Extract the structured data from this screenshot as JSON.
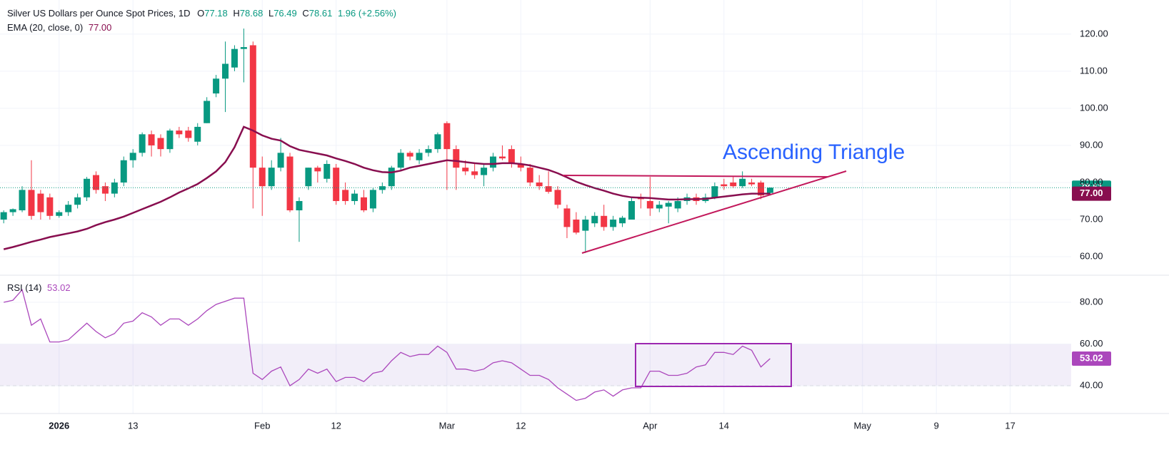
{
  "chart_data": {
    "type": "candlestick",
    "title": "Silver US Dollars per Ounce Spot Prices, 1D",
    "ohlc_labels": [
      "O",
      "H",
      "L",
      "C"
    ],
    "change": {
      "value": 1.96,
      "label": "1.96 (+2.56%)"
    },
    "up_color": "#089981",
    "down_color": "#f23645",
    "open": [
      70,
      72,
      72.5,
      78,
      77,
      76,
      71,
      72,
      74,
      76,
      82,
      79,
      77,
      80,
      86,
      88,
      93,
      92,
      89,
      94,
      94,
      91,
      96,
      104,
      108,
      111,
      116,
      117,
      84,
      79,
      84,
      87,
      72.5,
      79,
      84,
      81,
      84,
      78,
      75,
      76,
      73,
      78,
      79,
      84,
      88,
      86,
      88,
      89,
      96,
      89,
      84,
      83,
      82,
      84,
      87,
      89,
      85,
      84,
      80,
      79,
      78,
      73,
      70,
      67,
      69,
      71,
      68,
      69,
      70,
      76,
      75,
      73,
      73.5,
      73,
      75,
      76,
      75,
      76,
      79.5,
      80,
      79,
      80,
      80,
      77.18
    ],
    "high": [
      72.5,
      73,
      79,
      86,
      78,
      77,
      72.5,
      75,
      77,
      81.5,
      83,
      80,
      81,
      87,
      89,
      93.5,
      94,
      93,
      94.5,
      95,
      95,
      96,
      103,
      109,
      118,
      117,
      121.5,
      118,
      87,
      86,
      92,
      88,
      76,
      84,
      84.5,
      86,
      85,
      80,
      78,
      78,
      78.5,
      80,
      84.5,
      89,
      88.5,
      89,
      90,
      93.5,
      96.5,
      90,
      86,
      85,
      85,
      88,
      90,
      90,
      87,
      85,
      82,
      83,
      79,
      74,
      72,
      71,
      72,
      74,
      71,
      71,
      76,
      77,
      81.5,
      75,
      75,
      76,
      77,
      77,
      77,
      80,
      81,
      81.5,
      83,
      81,
      80.5,
      78.68
    ],
    "low": [
      69,
      71,
      72,
      70,
      70,
      70,
      70.5,
      71,
      73,
      75,
      77,
      75,
      76,
      79,
      84,
      87,
      87,
      87,
      88,
      92,
      91,
      90,
      96,
      103,
      99,
      110,
      107,
      73,
      71,
      78,
      83,
      72,
      64,
      78,
      80,
      80,
      74,
      74,
      74,
      72,
      72,
      77,
      78,
      83,
      86,
      85,
      87,
      88,
      78,
      78,
      82,
      81,
      79,
      83,
      86,
      84,
      83,
      79,
      78,
      77,
      73,
      65,
      66,
      61,
      68,
      67,
      67,
      68,
      70,
      73,
      71,
      72,
      69,
      72,
      74,
      74,
      74.5,
      75.5,
      78,
      78.5,
      78.5,
      79,
      75.5,
      76.49
    ],
    "close": [
      72,
      72.8,
      78,
      71,
      72,
      71,
      72,
      74,
      76,
      81,
      78,
      77,
      80,
      86,
      88,
      93,
      90,
      89,
      94,
      93,
      92,
      95,
      102,
      108,
      112,
      116,
      116.5,
      84,
      79,
      84,
      88,
      72.5,
      75,
      84,
      83,
      85,
      75,
      75,
      77,
      72.5,
      78,
      79,
      84,
      88,
      87,
      88,
      89,
      93,
      89,
      84,
      83,
      82,
      84,
      87,
      86.5,
      85,
      84,
      80,
      79,
      77.5,
      74,
      68,
      66.5,
      70,
      71,
      68,
      70,
      70.5,
      75,
      75.5,
      73,
      74,
      74.5,
      75,
      76,
      75,
      76,
      79,
      79,
      79,
      81,
      79.5,
      76.5,
      78.61
    ],
    "ema": {
      "name": "EMA (20, close, 0)",
      "color": "#880e4f",
      "last_label": "77.00",
      "values": [
        62,
        62.6,
        63.3,
        64,
        64.6,
        65.3,
        65.8,
        66.3,
        66.8,
        67.5,
        68.5,
        69.3,
        70,
        70.8,
        71.8,
        72.8,
        73.8,
        74.8,
        76,
        77.3,
        78.4,
        79.6,
        81.2,
        83,
        85.5,
        89.5,
        95,
        94,
        92.7,
        91.8,
        91.3,
        89.8,
        88.8,
        88.3,
        87.8,
        87.3,
        86.5,
        85.8,
        85,
        84,
        83.3,
        82.8,
        82.7,
        83.2,
        84,
        84.5,
        85,
        85.5,
        86,
        85.8,
        85.5,
        85.2,
        85,
        85,
        85.2,
        85.2,
        85,
        84.6,
        84,
        83.4,
        82.5,
        81.4,
        80.2,
        79.3,
        78.5,
        77.8,
        77,
        76.4,
        76,
        75.9,
        75.8,
        75.6,
        75.4,
        75.4,
        75.5,
        75.5,
        75.6,
        75.9,
        76.2,
        76.5,
        76.8,
        77,
        77,
        77
      ]
    },
    "ylim": [
      55.2,
      129.2
    ],
    "yticks": [
      {
        "value": 60,
        "label": "60.00"
      },
      {
        "value": 70,
        "label": "70.00"
      },
      {
        "value": 80,
        "label": "80.00"
      },
      {
        "value": 90,
        "label": "90.00"
      },
      {
        "value": 100,
        "label": "100.00"
      },
      {
        "value": 110,
        "label": "110.00"
      },
      {
        "value": 120,
        "label": "120.00"
      }
    ],
    "xlim": [
      -0.4,
      115.6
    ],
    "xticks": [
      {
        "value": 6,
        "label": "2026"
      },
      {
        "value": 14,
        "label": "13"
      },
      {
        "value": 28,
        "label": "Feb"
      },
      {
        "value": 36,
        "label": "12"
      },
      {
        "value": 48,
        "label": "Mar"
      },
      {
        "value": 56,
        "label": "12"
      },
      {
        "value": 70,
        "label": "Apr"
      },
      {
        "value": 78,
        "label": "14"
      },
      {
        "value": 93,
        "label": "May"
      },
      {
        "value": 101,
        "label": "9"
      },
      {
        "value": 109,
        "label": "17"
      }
    ],
    "grid": true,
    "annotation": "Ascending Triangle",
    "rsi": {
      "name": "RSI (14)",
      "color": "#ab47bc",
      "values": [
        80,
        81,
        86,
        69,
        72,
        61,
        61,
        62,
        66,
        70,
        66,
        63,
        65,
        70,
        71,
        75,
        73,
        69,
        72,
        72,
        69,
        72,
        76,
        79,
        80.5,
        82,
        82,
        46,
        43,
        47,
        49,
        40,
        43,
        48,
        46,
        48,
        42,
        44,
        44,
        42,
        46,
        47,
        52,
        56,
        54,
        55,
        55,
        59,
        56,
        48,
        48,
        47,
        48,
        51,
        52,
        51,
        48,
        45,
        45,
        43,
        39,
        36,
        33,
        34,
        37,
        38,
        35,
        38,
        39,
        39,
        47,
        47,
        45,
        45,
        46,
        49,
        50,
        56,
        56,
        55,
        59,
        57,
        49,
        53.02
      ],
      "ylim": [
        26.7,
        93
      ],
      "yticks": [
        {
          "value": 40,
          "label": "40.00"
        },
        {
          "value": 60,
          "label": "60.00"
        },
        {
          "value": 80,
          "label": "80.00"
        }
      ],
      "band": [
        40,
        60
      ]
    }
  }
}
